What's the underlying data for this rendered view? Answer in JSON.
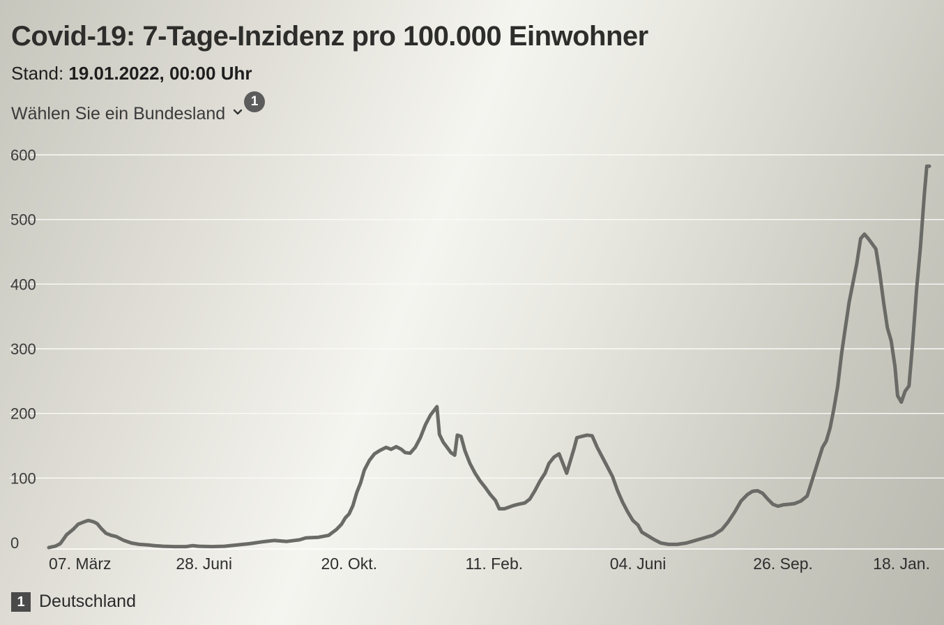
{
  "header": {
    "title": "Covid-19: 7-Tage-Inzidenz pro 100.000 Einwohner",
    "stand_label": "Stand:",
    "stand_value": "19.01.2022, 00:00 Uhr"
  },
  "selector": {
    "label": "Wählen Sie ein Bundesland",
    "footnote_badge": "1"
  },
  "footnote": {
    "number": "1",
    "text": "Deutschland"
  },
  "colors": {
    "line": "#6a6a66",
    "grid": "#fafaf7",
    "badge": "#5c5c5c"
  },
  "chart_data": {
    "type": "line",
    "title": "Covid-19: 7-Tage-Inzidenz pro 100.000 Einwohner",
    "xlabel": "",
    "ylabel": "",
    "ylim": [
      0,
      600
    ],
    "yticks": [
      0,
      100,
      200,
      300,
      400,
      500,
      600
    ],
    "xlim": [
      "2020-02-27",
      "2022-01-19"
    ],
    "xticks": [
      {
        "date": "2020-03-07",
        "label": "07. März"
      },
      {
        "date": "2020-06-28",
        "label": "28. Juni"
      },
      {
        "date": "2020-10-20",
        "label": "20. Okt."
      },
      {
        "date": "2021-02-11",
        "label": "11. Feb."
      },
      {
        "date": "2021-06-04",
        "label": "04. Juni"
      },
      {
        "date": "2021-09-26",
        "label": "26. Sep."
      },
      {
        "date": "2022-01-18",
        "label": "18. Jan."
      }
    ],
    "grid": true,
    "series": [
      {
        "name": "Deutschland",
        "points": [
          [
            "2020-02-27",
            0
          ],
          [
            "2020-03-03",
            2
          ],
          [
            "2020-03-07",
            6
          ],
          [
            "2020-03-12",
            20
          ],
          [
            "2020-03-17",
            28
          ],
          [
            "2020-03-21",
            36
          ],
          [
            "2020-03-26",
            40
          ],
          [
            "2020-03-29",
            42
          ],
          [
            "2020-04-02",
            40
          ],
          [
            "2020-04-05",
            37
          ],
          [
            "2020-04-08",
            30
          ],
          [
            "2020-04-12",
            22
          ],
          [
            "2020-04-16",
            19
          ],
          [
            "2020-04-20",
            17
          ],
          [
            "2020-04-26",
            11
          ],
          [
            "2020-05-02",
            7
          ],
          [
            "2020-05-08",
            5
          ],
          [
            "2020-05-15",
            4
          ],
          [
            "2020-05-20",
            3
          ],
          [
            "2020-05-27",
            2
          ],
          [
            "2020-06-05",
            1.5
          ],
          [
            "2020-06-14",
            1.5
          ],
          [
            "2020-06-19",
            3
          ],
          [
            "2020-06-24",
            2
          ],
          [
            "2020-07-04",
            1.5
          ],
          [
            "2020-07-14",
            2
          ],
          [
            "2020-07-24",
            4
          ],
          [
            "2020-08-03",
            6
          ],
          [
            "2020-08-13",
            9
          ],
          [
            "2020-08-22",
            11
          ],
          [
            "2020-09-01",
            9.5
          ],
          [
            "2020-09-11",
            12
          ],
          [
            "2020-09-16",
            15
          ],
          [
            "2020-09-26",
            16
          ],
          [
            "2020-10-04",
            19
          ],
          [
            "2020-10-10",
            28
          ],
          [
            "2020-10-14",
            36
          ],
          [
            "2020-10-17",
            46
          ],
          [
            "2020-10-20",
            52
          ],
          [
            "2020-10-23",
            65
          ],
          [
            "2020-10-26",
            85
          ],
          [
            "2020-10-29",
            100
          ],
          [
            "2020-11-01",
            120
          ],
          [
            "2020-11-05",
            135
          ],
          [
            "2020-11-09",
            145
          ],
          [
            "2020-11-13",
            150
          ],
          [
            "2020-11-18",
            155
          ],
          [
            "2020-11-22",
            152
          ],
          [
            "2020-11-26",
            156
          ],
          [
            "2020-11-30",
            152
          ],
          [
            "2020-12-03",
            147
          ],
          [
            "2020-12-07",
            146
          ],
          [
            "2020-12-11",
            155
          ],
          [
            "2020-12-15",
            170
          ],
          [
            "2020-12-19",
            190
          ],
          [
            "2020-12-23",
            205
          ],
          [
            "2020-12-28",
            218
          ],
          [
            "2020-12-30",
            175
          ],
          [
            "2021-01-02",
            163
          ],
          [
            "2021-01-05",
            155
          ],
          [
            "2021-01-08",
            147
          ],
          [
            "2021-01-11",
            143
          ],
          [
            "2021-01-13",
            174
          ],
          [
            "2021-01-16",
            172
          ],
          [
            "2021-01-19",
            150
          ],
          [
            "2021-01-23",
            130
          ],
          [
            "2021-01-27",
            115
          ],
          [
            "2021-01-31",
            103
          ],
          [
            "2021-02-04",
            93
          ],
          [
            "2021-02-08",
            82
          ],
          [
            "2021-02-12",
            73
          ],
          [
            "2021-02-15",
            60
          ],
          [
            "2021-02-19",
            60
          ],
          [
            "2021-02-22",
            62
          ],
          [
            "2021-02-26",
            65
          ],
          [
            "2021-03-02",
            67
          ],
          [
            "2021-03-07",
            69
          ],
          [
            "2021-03-11",
            75
          ],
          [
            "2021-03-15",
            88
          ],
          [
            "2021-03-19",
            103
          ],
          [
            "2021-03-23",
            115
          ],
          [
            "2021-03-26",
            130
          ],
          [
            "2021-03-30",
            140
          ],
          [
            "2021-04-03",
            145
          ],
          [
            "2021-04-06",
            130
          ],
          [
            "2021-04-09",
            115
          ],
          [
            "2021-04-12",
            135
          ],
          [
            "2021-04-15",
            155
          ],
          [
            "2021-04-17",
            170
          ],
          [
            "2021-04-21",
            172
          ],
          [
            "2021-04-25",
            174
          ],
          [
            "2021-04-29",
            173
          ],
          [
            "2021-05-03",
            155
          ],
          [
            "2021-05-07",
            140
          ],
          [
            "2021-05-11",
            125
          ],
          [
            "2021-05-15",
            110
          ],
          [
            "2021-05-19",
            88
          ],
          [
            "2021-05-23",
            70
          ],
          [
            "2021-05-27",
            55
          ],
          [
            "2021-05-31",
            42
          ],
          [
            "2021-06-04",
            35
          ],
          [
            "2021-06-07",
            24
          ],
          [
            "2021-06-12",
            18
          ],
          [
            "2021-06-17",
            12
          ],
          [
            "2021-06-22",
            7
          ],
          [
            "2021-06-28",
            5
          ],
          [
            "2021-07-05",
            5
          ],
          [
            "2021-07-12",
            7
          ],
          [
            "2021-07-19",
            11
          ],
          [
            "2021-07-26",
            15
          ],
          [
            "2021-08-02",
            19
          ],
          [
            "2021-08-09",
            28
          ],
          [
            "2021-08-14",
            40
          ],
          [
            "2021-08-19",
            55
          ],
          [
            "2021-08-24",
            72
          ],
          [
            "2021-08-29",
            82
          ],
          [
            "2021-09-02",
            87
          ],
          [
            "2021-09-06",
            88
          ],
          [
            "2021-09-10",
            84
          ],
          [
            "2021-09-14",
            75
          ],
          [
            "2021-09-18",
            67
          ],
          [
            "2021-09-22",
            64
          ],
          [
            "2021-09-26",
            66
          ],
          [
            "2021-10-01",
            67
          ],
          [
            "2021-10-05",
            68
          ],
          [
            "2021-10-10",
            72
          ],
          [
            "2021-10-15",
            80
          ],
          [
            "2021-10-19",
            105
          ],
          [
            "2021-10-23",
            130
          ],
          [
            "2021-10-27",
            155
          ],
          [
            "2021-10-30",
            165
          ],
          [
            "2021-11-02",
            185
          ],
          [
            "2021-11-05",
            215
          ],
          [
            "2021-11-08",
            250
          ],
          [
            "2021-11-11",
            300
          ],
          [
            "2021-11-14",
            340
          ],
          [
            "2021-11-17",
            380
          ],
          [
            "2021-11-20",
            410
          ],
          [
            "2021-11-23",
            440
          ],
          [
            "2021-11-26",
            478
          ],
          [
            "2021-11-29",
            485
          ],
          [
            "2021-12-02",
            478
          ],
          [
            "2021-12-05",
            470
          ],
          [
            "2021-12-08",
            462
          ],
          [
            "2021-12-11",
            425
          ],
          [
            "2021-12-14",
            380
          ],
          [
            "2021-12-17",
            340
          ],
          [
            "2021-12-20",
            320
          ],
          [
            "2021-12-23",
            280
          ],
          [
            "2021-12-25",
            235
          ],
          [
            "2021-12-28",
            225
          ],
          [
            "2021-12-31",
            242
          ],
          [
            "2022-01-03",
            250
          ],
          [
            "2022-01-06",
            320
          ],
          [
            "2022-01-09",
            400
          ],
          [
            "2022-01-12",
            465
          ],
          [
            "2022-01-15",
            545
          ],
          [
            "2022-01-17",
            590
          ],
          [
            "2022-01-19",
            590
          ]
        ]
      }
    ]
  }
}
